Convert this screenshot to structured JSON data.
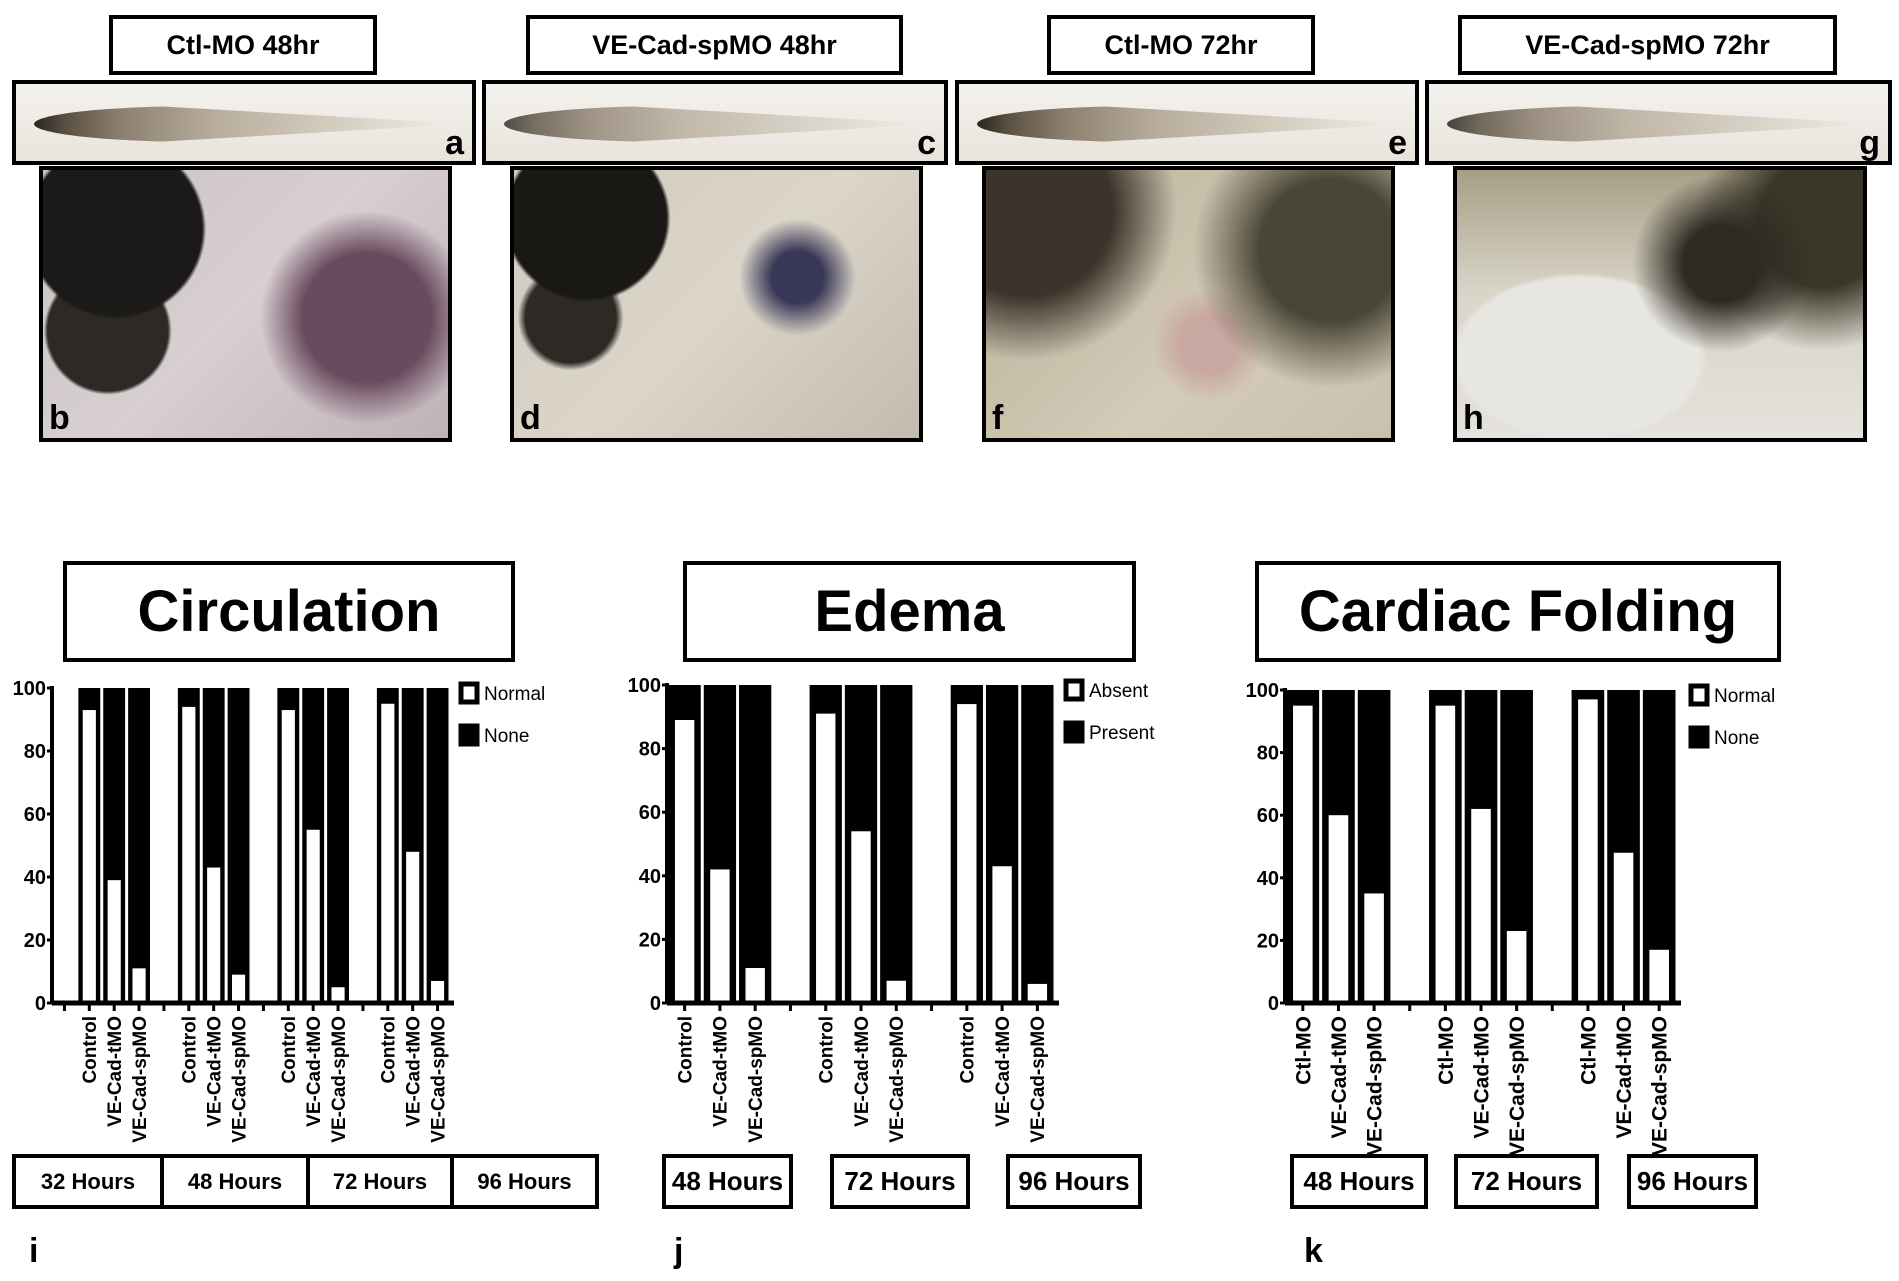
{
  "top_labels": [
    "Ctl-MO 48hr",
    "VE-Cad-spMO 48hr",
    "Ctl-MO 72hr",
    "VE-Cad-spMO 72hr"
  ],
  "panel_letters": {
    "strip": [
      "a",
      "c",
      "e",
      "g"
    ],
    "zoom": [
      "b",
      "d",
      "f",
      "h"
    ],
    "charts": [
      "i",
      "j",
      "k"
    ]
  },
  "chart_titles": [
    "Circulation",
    "Edema",
    "Cardiac Folding"
  ],
  "hour_labels": {
    "circulation": [
      "32 Hours",
      "48 Hours",
      "72 Hours",
      "96 Hours"
    ],
    "edema": [
      "48 Hours",
      "72  Hours",
      "96 Hours"
    ],
    "cardiac": [
      "48 Hours",
      "72  Hours",
      "96 Hours"
    ]
  },
  "chart_data": [
    {
      "type": "bar",
      "stacked": true,
      "title": "Circulation",
      "ylim": [
        0,
        100
      ],
      "yticks": [
        0,
        20,
        40,
        60,
        80,
        100
      ],
      "legend": [
        "Normal",
        "None"
      ],
      "legend_placement": "top-right",
      "leading_gap": true,
      "groups": [
        {
          "categories": [
            "Control",
            "VE-Cad-tMO",
            "VE-Cad-spMO"
          ],
          "normal": [
            93,
            39,
            11
          ]
        },
        {
          "categories": [
            "Control",
            "VE-Cad-tMO",
            "VE-Cad-spMO"
          ],
          "normal": [
            94,
            43,
            9
          ]
        },
        {
          "categories": [
            "Control",
            "VE-Cad-tMO",
            "VE-Cad-spMO"
          ],
          "normal": [
            93,
            55,
            5
          ]
        },
        {
          "categories": [
            "Control",
            "VE-Cad-tMO",
            "VE-Cad-spMO"
          ],
          "normal": [
            95,
            48,
            7
          ]
        }
      ]
    },
    {
      "type": "bar",
      "stacked": true,
      "title": "Edema",
      "ylim": [
        0,
        100
      ],
      "yticks": [
        0,
        20,
        40,
        60,
        80,
        100
      ],
      "legend": [
        "Absent",
        "Present"
      ],
      "legend_placement": "top-right",
      "leading_gap": false,
      "groups": [
        {
          "categories": [
            "Control",
            "VE-Cad-tMO",
            "VE-Cad-spMO"
          ],
          "normal": [
            89,
            42,
            11
          ]
        },
        {
          "categories": [
            "Control",
            "VE-Cad-tMO",
            "VE-Cad-spMO"
          ],
          "normal": [
            91,
            54,
            7
          ]
        },
        {
          "categories": [
            "Control",
            "VE-Cad-tMO",
            "VE-Cad-spMO"
          ],
          "normal": [
            94,
            43,
            6
          ]
        }
      ]
    },
    {
      "type": "bar",
      "stacked": true,
      "title": "Cardiac Folding",
      "ylim": [
        0,
        100
      ],
      "yticks": [
        0,
        20,
        40,
        60,
        80,
        100
      ],
      "legend": [
        "Normal",
        "None"
      ],
      "legend_placement": "top-right",
      "leading_gap": false,
      "groups": [
        {
          "categories": [
            "Ctl-MO",
            "VE-Cad-tMO",
            "VE-Cad-spMO"
          ],
          "normal": [
            95,
            60,
            35
          ]
        },
        {
          "categories": [
            "Ctl-MO",
            "VE-Cad-tMO",
            "VE-Cad-spMO"
          ],
          "normal": [
            95,
            62,
            23
          ]
        },
        {
          "categories": [
            "Ctl-MO",
            "VE-Cad-tMO",
            "VE-Cad-spMO"
          ],
          "normal": [
            97,
            48,
            17
          ]
        }
      ]
    }
  ]
}
